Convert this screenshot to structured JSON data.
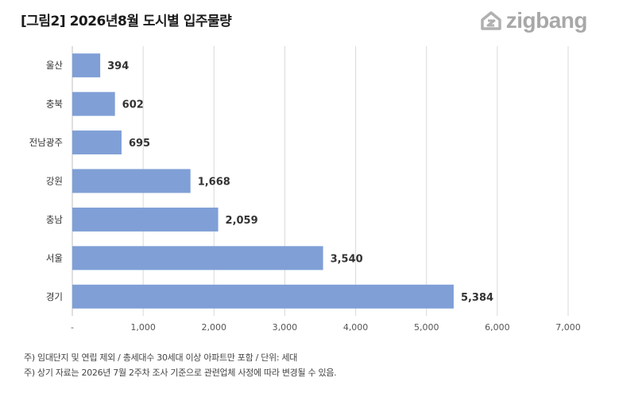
{
  "title": "[그림2] 2026년8월 도시별 입주물량",
  "brand": {
    "name": "zigbang",
    "icon": "zigbang-logo-icon",
    "color": "#a8a8a8"
  },
  "chart_data": {
    "type": "bar",
    "orientation": "horizontal",
    "categories": [
      "울산",
      "충북",
      "전남광주",
      "강원",
      "충남",
      "서울",
      "경기"
    ],
    "values": [
      394,
      602,
      695,
      1668,
      2059,
      3540,
      5384
    ],
    "value_labels": [
      "394",
      "602",
      "695",
      "1,668",
      "2,059",
      "3,540",
      "5,384"
    ],
    "xlim": [
      0,
      7000
    ],
    "x_ticks": [
      0,
      1000,
      2000,
      3000,
      4000,
      5000,
      6000,
      7000
    ],
    "x_tick_labels": [
      "-",
      "1,000",
      "2,000",
      "3,000",
      "4,000",
      "5,000",
      "6,000",
      "7,000"
    ],
    "grid": "vertical",
    "bar_color": "#7f9fd6",
    "grid_color": "#d9d9d9",
    "legend": "none"
  },
  "notes": [
    "주) 임대단지 및 연립 제외 / 총세대수 30세대 이상 아파트만 포함 / 단위: 세대",
    "주) 상기 자료는 2026년 7월 2주차 조사 기준으로 관련업체 사정에 따라 변경될 수 있음."
  ]
}
